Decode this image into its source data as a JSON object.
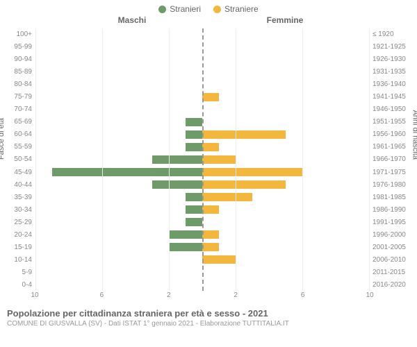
{
  "legend": {
    "male": {
      "label": "Stranieri",
      "color": "#6f9a6a"
    },
    "female": {
      "label": "Straniere",
      "color": "#f3b73e"
    }
  },
  "headers": {
    "left": "Maschi",
    "right": "Femmine"
  },
  "axis_labels": {
    "left": "Fasce di età",
    "right": "Anni di nascita"
  },
  "chart": {
    "type": "population-pyramid",
    "x_max": 10,
    "x_ticks": [
      10,
      6,
      2,
      2,
      6,
      10
    ],
    "grid_color": "#eeeeee",
    "center_line_color": "#999999",
    "background_color": "#ffffff",
    "bar_male_color": "#6f9a6a",
    "bar_female_color": "#f3b73e",
    "tick_font_size": 10,
    "label_font_size": 11,
    "rows": [
      {
        "age": "100+",
        "birth": "≤ 1920",
        "m": 0,
        "f": 0
      },
      {
        "age": "95-99",
        "birth": "1921-1925",
        "m": 0,
        "f": 0
      },
      {
        "age": "90-94",
        "birth": "1926-1930",
        "m": 0,
        "f": 0
      },
      {
        "age": "85-89",
        "birth": "1931-1935",
        "m": 0,
        "f": 0
      },
      {
        "age": "80-84",
        "birth": "1936-1940",
        "m": 0,
        "f": 0
      },
      {
        "age": "75-79",
        "birth": "1941-1945",
        "m": 0,
        "f": 1
      },
      {
        "age": "70-74",
        "birth": "1946-1950",
        "m": 0,
        "f": 0
      },
      {
        "age": "65-69",
        "birth": "1951-1955",
        "m": 1,
        "f": 0
      },
      {
        "age": "60-64",
        "birth": "1956-1960",
        "m": 1,
        "f": 5
      },
      {
        "age": "55-59",
        "birth": "1961-1965",
        "m": 1,
        "f": 1
      },
      {
        "age": "50-54",
        "birth": "1966-1970",
        "m": 3,
        "f": 2
      },
      {
        "age": "45-49",
        "birth": "1971-1975",
        "m": 9,
        "f": 6
      },
      {
        "age": "40-44",
        "birth": "1976-1980",
        "m": 3,
        "f": 5
      },
      {
        "age": "35-39",
        "birth": "1981-1985",
        "m": 1,
        "f": 3
      },
      {
        "age": "30-34",
        "birth": "1986-1990",
        "m": 1,
        "f": 1
      },
      {
        "age": "25-29",
        "birth": "1991-1995",
        "m": 1,
        "f": 0
      },
      {
        "age": "20-24",
        "birth": "1996-2000",
        "m": 2,
        "f": 1
      },
      {
        "age": "15-19",
        "birth": "2001-2005",
        "m": 2,
        "f": 1
      },
      {
        "age": "10-14",
        "birth": "2006-2010",
        "m": 0,
        "f": 2
      },
      {
        "age": "5-9",
        "birth": "2011-2015",
        "m": 0,
        "f": 0
      },
      {
        "age": "0-4",
        "birth": "2016-2020",
        "m": 0,
        "f": 0
      }
    ]
  },
  "caption": {
    "title": "Popolazione per cittadinanza straniera per età e sesso - 2021",
    "subtitle": "COMUNE DI GIUSVALLA (SV) - Dati ISTAT 1° gennaio 2021 - Elaborazione TUTTITALIA.IT"
  }
}
